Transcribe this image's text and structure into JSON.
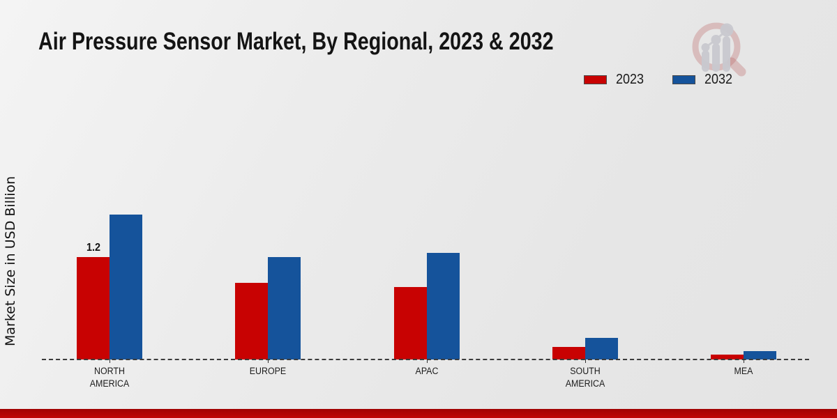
{
  "header": {
    "title": "Air Pressure Sensor Market, By Regional, 2023 & 2032"
  },
  "legend": {
    "items": [
      {
        "label": "2023",
        "color": "#c80202"
      },
      {
        "label": "2032",
        "color": "#15539b"
      }
    ]
  },
  "chart_data": {
    "type": "bar",
    "title": "Air Pressure Sensor Market, By Regional, 2023 & 2032",
    "xlabel": "",
    "ylabel": "Market Size in USD Billion",
    "categories": [
      "NORTH AMERICA",
      "EUROPE",
      "APAC",
      "SOUTH AMERICA",
      "MEA"
    ],
    "series": [
      {
        "name": "2023",
        "color": "#c80202",
        "values": [
          1.2,
          0.9,
          0.85,
          0.15,
          0.06
        ]
      },
      {
        "name": "2032",
        "color": "#15539b",
        "values": [
          1.7,
          1.2,
          1.25,
          0.25,
          0.1
        ]
      }
    ],
    "annotations": [
      {
        "category_index": 0,
        "series_index": 0,
        "text": "1.2"
      }
    ],
    "baseline": 0,
    "grid": false,
    "axis_line_style": "dashed",
    "legend_position": "top-right"
  },
  "colors": {
    "series_2023": "#c80202",
    "series_2032": "#15539b",
    "footer_strip": "#b80404",
    "background": "#e9e9e9"
  },
  "icons": {
    "logo": "magnifier-bar-chart-logo"
  }
}
